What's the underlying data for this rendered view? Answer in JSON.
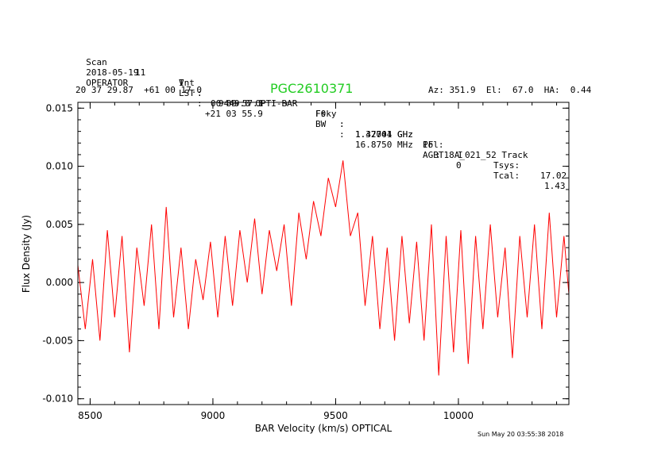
{
  "header": {
    "row1": [
      "Scan",
      "11",
      "V",
      ":",
      "9449.0 OPTI-BAR",
      "F0",
      ":",
      "1.42041 GHz",
      "Pol:",
      "I",
      "Tsys:",
      "17.02"
    ],
    "row2": [
      "2018-05-19",
      "Int",
      ":",
      "00 09 57.1",
      "Fsky",
      ":",
      "1.37704 GHz",
      "IF",
      ":",
      "0",
      "Tcal:",
      "1.43"
    ],
    "row3": [
      "OPERATOR",
      "LST",
      ":",
      "+21 03 55.9",
      "BW",
      ":",
      "16.8750 MHz",
      "AGBT18A_021_52 Track"
    ],
    "coords": "20 37 29.87  +61 00 17.0",
    "source": "PGC2610371",
    "azelha": "Az: 351.9  El:  67.0  HA:  0.44",
    "timestamp": "Sun May 20 03:55:38 2018"
  },
  "chart_data": {
    "type": "line",
    "title": "PGC2610371",
    "xlabel": "BAR Velocity (km/s) OPTICAL",
    "ylabel": "Flux Density (Jy)",
    "xlim": [
      8450,
      10450
    ],
    "ylim": [
      -0.0105,
      0.0155
    ],
    "xticks": [
      8500,
      9000,
      9500,
      10000
    ],
    "yticks": [
      -0.01,
      -0.005,
      0.0,
      0.005,
      0.01,
      0.015
    ],
    "ytick_labels": [
      "-0.010",
      "-0.005",
      "0.000",
      "0.005",
      "0.010",
      "0.015"
    ],
    "grid": false,
    "series": [
      {
        "color": "#ff0000",
        "x": [
          8450,
          8480,
          8510,
          8540,
          8570,
          8600,
          8630,
          8660,
          8690,
          8720,
          8750,
          8780,
          8810,
          8840,
          8870,
          8900,
          8930,
          8960,
          8990,
          9020,
          9050,
          9080,
          9110,
          9140,
          9170,
          9200,
          9230,
          9260,
          9290,
          9320,
          9350,
          9380,
          9410,
          9440,
          9470,
          9500,
          9530,
          9560,
          9590,
          9620,
          9650,
          9680,
          9710,
          9740,
          9770,
          9800,
          9830,
          9860,
          9890,
          9920,
          9950,
          9980,
          10010,
          10040,
          10070,
          10100,
          10130,
          10160,
          10190,
          10220,
          10250,
          10280,
          10310,
          10340,
          10370,
          10400,
          10430,
          10450
        ],
        "y": [
          0.0015,
          -0.004,
          0.002,
          -0.005,
          0.0045,
          -0.003,
          0.004,
          -0.006,
          0.003,
          -0.002,
          0.005,
          -0.004,
          0.0065,
          -0.003,
          0.003,
          -0.004,
          0.002,
          -0.0015,
          0.0035,
          -0.003,
          0.004,
          -0.002,
          0.0045,
          0.0,
          0.0055,
          -0.001,
          0.0045,
          0.001,
          0.005,
          -0.002,
          0.006,
          0.002,
          0.007,
          0.004,
          0.009,
          0.0065,
          0.0105,
          0.004,
          0.006,
          -0.002,
          0.004,
          -0.004,
          0.003,
          -0.005,
          0.004,
          -0.0035,
          0.0035,
          -0.005,
          0.005,
          -0.008,
          0.004,
          -0.006,
          0.0045,
          -0.007,
          0.004,
          -0.004,
          0.005,
          -0.003,
          0.003,
          -0.0065,
          0.004,
          -0.003,
          0.005,
          -0.004,
          0.006,
          -0.003,
          0.004,
          -0.001
        ]
      }
    ]
  }
}
